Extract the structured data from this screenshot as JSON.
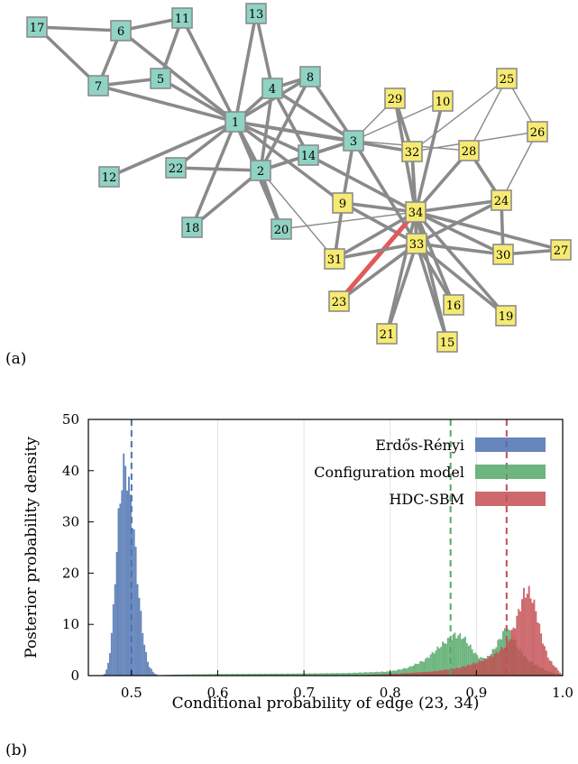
{
  "panels": {
    "a": "(a)",
    "b": "(b)"
  },
  "network": {
    "group_colors": {
      "teal": "#8fd3c4",
      "yellow": "#f6ea72"
    },
    "highlight_color": "#e05a5a",
    "highlighted_edge": [
      "23",
      "34"
    ],
    "nodes": [
      {
        "id": "1",
        "group": "teal"
      },
      {
        "id": "2",
        "group": "teal"
      },
      {
        "id": "3",
        "group": "teal"
      },
      {
        "id": "4",
        "group": "teal"
      },
      {
        "id": "5",
        "group": "teal"
      },
      {
        "id": "6",
        "group": "teal"
      },
      {
        "id": "7",
        "group": "teal"
      },
      {
        "id": "8",
        "group": "teal"
      },
      {
        "id": "9",
        "group": "yellow"
      },
      {
        "id": "10",
        "group": "yellow"
      },
      {
        "id": "11",
        "group": "teal"
      },
      {
        "id": "12",
        "group": "teal"
      },
      {
        "id": "13",
        "group": "teal"
      },
      {
        "id": "14",
        "group": "teal"
      },
      {
        "id": "15",
        "group": "yellow"
      },
      {
        "id": "16",
        "group": "yellow"
      },
      {
        "id": "17",
        "group": "teal"
      },
      {
        "id": "18",
        "group": "teal"
      },
      {
        "id": "19",
        "group": "yellow"
      },
      {
        "id": "20",
        "group": "teal"
      },
      {
        "id": "21",
        "group": "yellow"
      },
      {
        "id": "22",
        "group": "teal"
      },
      {
        "id": "23",
        "group": "yellow"
      },
      {
        "id": "24",
        "group": "yellow"
      },
      {
        "id": "25",
        "group": "yellow"
      },
      {
        "id": "26",
        "group": "yellow"
      },
      {
        "id": "27",
        "group": "yellow"
      },
      {
        "id": "28",
        "group": "yellow"
      },
      {
        "id": "29",
        "group": "yellow"
      },
      {
        "id": "30",
        "group": "yellow"
      },
      {
        "id": "31",
        "group": "yellow"
      },
      {
        "id": "32",
        "group": "yellow"
      },
      {
        "id": "33",
        "group": "yellow"
      },
      {
        "id": "34",
        "group": "yellow"
      }
    ],
    "edges": [
      [
        "1",
        "2"
      ],
      [
        "1",
        "3"
      ],
      [
        "1",
        "4"
      ],
      [
        "1",
        "5"
      ],
      [
        "1",
        "6"
      ],
      [
        "1",
        "7"
      ],
      [
        "1",
        "8"
      ],
      [
        "1",
        "9"
      ],
      [
        "1",
        "11"
      ],
      [
        "1",
        "12"
      ],
      [
        "1",
        "13"
      ],
      [
        "1",
        "14"
      ],
      [
        "1",
        "18"
      ],
      [
        "1",
        "20"
      ],
      [
        "1",
        "22"
      ],
      [
        "1",
        "32"
      ],
      [
        "2",
        "3"
      ],
      [
        "2",
        "4"
      ],
      [
        "2",
        "8"
      ],
      [
        "2",
        "14"
      ],
      [
        "2",
        "18"
      ],
      [
        "2",
        "20"
      ],
      [
        "2",
        "22"
      ],
      [
        "2",
        "31"
      ],
      [
        "3",
        "4"
      ],
      [
        "3",
        "8"
      ],
      [
        "3",
        "9"
      ],
      [
        "3",
        "10"
      ],
      [
        "3",
        "14"
      ],
      [
        "3",
        "28"
      ],
      [
        "3",
        "29"
      ],
      [
        "3",
        "33"
      ],
      [
        "4",
        "8"
      ],
      [
        "4",
        "13"
      ],
      [
        "4",
        "14"
      ],
      [
        "5",
        "7"
      ],
      [
        "5",
        "11"
      ],
      [
        "6",
        "7"
      ],
      [
        "6",
        "11"
      ],
      [
        "6",
        "17"
      ],
      [
        "7",
        "17"
      ],
      [
        "9",
        "31"
      ],
      [
        "9",
        "33"
      ],
      [
        "9",
        "34"
      ],
      [
        "10",
        "34"
      ],
      [
        "14",
        "34"
      ],
      [
        "15",
        "33"
      ],
      [
        "15",
        "34"
      ],
      [
        "16",
        "33"
      ],
      [
        "16",
        "34"
      ],
      [
        "19",
        "33"
      ],
      [
        "19",
        "34"
      ],
      [
        "20",
        "34"
      ],
      [
        "21",
        "33"
      ],
      [
        "21",
        "34"
      ],
      [
        "23",
        "33"
      ],
      [
        "23",
        "34"
      ],
      [
        "24",
        "26"
      ],
      [
        "24",
        "28"
      ],
      [
        "24",
        "30"
      ],
      [
        "24",
        "33"
      ],
      [
        "24",
        "34"
      ],
      [
        "25",
        "26"
      ],
      [
        "25",
        "28"
      ],
      [
        "25",
        "32"
      ],
      [
        "26",
        "32"
      ],
      [
        "27",
        "30"
      ],
      [
        "27",
        "34"
      ],
      [
        "28",
        "34"
      ],
      [
        "29",
        "32"
      ],
      [
        "29",
        "34"
      ],
      [
        "30",
        "33"
      ],
      [
        "30",
        "34"
      ],
      [
        "31",
        "33"
      ],
      [
        "31",
        "34"
      ],
      [
        "32",
        "33"
      ],
      [
        "32",
        "34"
      ],
      [
        "33",
        "34"
      ]
    ]
  },
  "chart_data": {
    "type": "histogram",
    "xlabel": "Conditional probability of edge (23, 34)",
    "ylabel": "Posterior probability density",
    "xlim": [
      0.45,
      1.0
    ],
    "ylim": [
      0,
      50
    ],
    "xticks": [
      "0.5",
      "0.6",
      "0.7",
      "0.8",
      "0.9",
      "1.0"
    ],
    "yticks": [
      "0",
      "10",
      "20",
      "30",
      "40",
      "50"
    ],
    "grid": "vertical",
    "legend_position": "top-right",
    "bin_width": 0.002,
    "series": [
      {
        "name": "Erdős-Rényi",
        "color": "#4c72b0",
        "mean": 0.5,
        "density_points": [
          [
            0.466,
            0
          ],
          [
            0.47,
            0.5
          ],
          [
            0.474,
            3
          ],
          [
            0.478,
            10
          ],
          [
            0.482,
            22
          ],
          [
            0.486,
            33
          ],
          [
            0.49,
            40
          ],
          [
            0.493,
            41
          ],
          [
            0.496,
            38
          ],
          [
            0.5,
            33
          ],
          [
            0.504,
            26
          ],
          [
            0.508,
            17
          ],
          [
            0.512,
            10
          ],
          [
            0.516,
            5
          ],
          [
            0.52,
            2
          ],
          [
            0.526,
            0.5
          ],
          [
            0.532,
            0
          ]
        ]
      },
      {
        "name": "Configuration model",
        "color": "#55a868",
        "mean": 0.87,
        "density_points": [
          [
            0.52,
            0
          ],
          [
            0.55,
            0.2
          ],
          [
            0.6,
            0.3
          ],
          [
            0.65,
            0.35
          ],
          [
            0.7,
            0.4
          ],
          [
            0.75,
            0.5
          ],
          [
            0.8,
            0.8
          ],
          [
            0.82,
            1.5
          ],
          [
            0.84,
            3
          ],
          [
            0.86,
            6
          ],
          [
            0.875,
            8
          ],
          [
            0.885,
            7.5
          ],
          [
            0.9,
            4
          ],
          [
            0.91,
            3
          ],
          [
            0.92,
            5
          ],
          [
            0.93,
            8
          ],
          [
            0.935,
            9.5
          ],
          [
            0.94,
            8
          ],
          [
            0.95,
            5
          ],
          [
            0.96,
            3
          ],
          [
            0.97,
            2
          ],
          [
            0.98,
            1
          ],
          [
            0.99,
            0.5
          ],
          [
            1.0,
            0
          ]
        ]
      },
      {
        "name": "HDC-SBM",
        "color": "#c44e52",
        "mean": 0.935,
        "density_points": [
          [
            0.75,
            0
          ],
          [
            0.8,
            0.3
          ],
          [
            0.85,
            0.8
          ],
          [
            0.88,
            1.5
          ],
          [
            0.9,
            2.5
          ],
          [
            0.92,
            4
          ],
          [
            0.935,
            6
          ],
          [
            0.945,
            10
          ],
          [
            0.955,
            16
          ],
          [
            0.96,
            16.5
          ],
          [
            0.965,
            15
          ],
          [
            0.97,
            12
          ],
          [
            0.975,
            8
          ],
          [
            0.98,
            5
          ],
          [
            0.985,
            3
          ],
          [
            0.99,
            2
          ],
          [
            0.995,
            1
          ],
          [
            1.0,
            0
          ]
        ]
      }
    ]
  }
}
